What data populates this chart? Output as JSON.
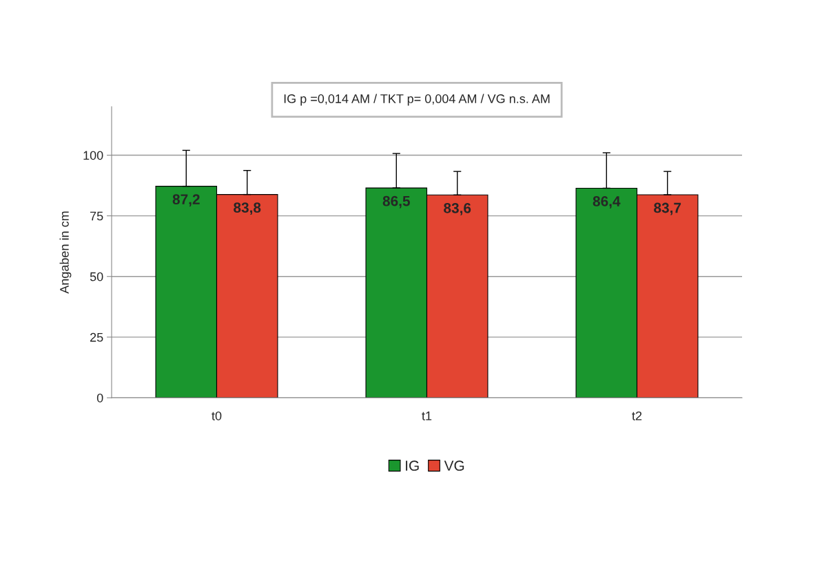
{
  "chart_data": {
    "type": "bar",
    "categories": [
      "t0",
      "t1",
      "t2"
    ],
    "ylabel": "Angaben in cm",
    "ylim": [
      0,
      120
    ],
    "yticks": [
      0,
      25,
      50,
      75,
      100
    ],
    "grid": "y",
    "legend": "bottom",
    "annotations": [
      "IG p =0,014 AM / TKT p= 0,004 AM / VG n.s. AM"
    ],
    "series": [
      {
        "name": "IG",
        "color": "#1a962e",
        "values": [
          87.2,
          86.5,
          86.4
        ],
        "value_labels": [
          "87,2",
          "86,5",
          "86,4"
        ],
        "errors": [
          [
            87.2,
            102.0
          ],
          [
            86.5,
            100.7
          ],
          [
            86.4,
            101.0
          ]
        ]
      },
      {
        "name": "VG",
        "color": "#e34532",
        "values": [
          83.8,
          83.6,
          83.7
        ],
        "value_labels": [
          "83,8",
          "83,6",
          "83,7"
        ],
        "errors": [
          [
            83.8,
            93.7
          ],
          [
            83.6,
            93.3
          ],
          [
            83.7,
            93.3
          ]
        ]
      }
    ]
  }
}
